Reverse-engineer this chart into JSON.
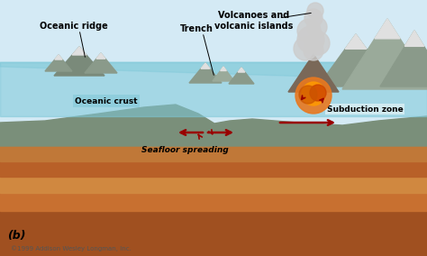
{
  "bg_color": "#d4eaf5",
  "labels": {
    "volcanoes": "Volcanoes and\nvolcanic islands",
    "trench": "Trench",
    "oceanic_ridge": "Oceanic ridge",
    "oceanic_crust": "Oceanic crust",
    "seafloor": "Seafloor spreading",
    "subduction": "Subduction zone",
    "b_label": "(b)",
    "copyright": "©1999 Addison Wesley Longman, Inc."
  },
  "colors": {
    "water": "#7ec8d8",
    "water_deep": "#5aafcb",
    "crust_gray": "#8a9e8a",
    "mantle1": "#c8773a",
    "mantle2": "#b85e2a",
    "mantle3": "#d49060",
    "smoke": "#cccccc",
    "lava": "#e87820",
    "lava_dark": "#cc4400",
    "mountain_gray": "#9aaa9a",
    "arrow_color": "#990000",
    "snow": "#e0e0e0",
    "mountain1": "#7a8a7a",
    "mountain2": "#8a9a8a",
    "mountain3": "#9aaa9a"
  },
  "fig_width": 4.74,
  "fig_height": 2.84,
  "dpi": 100
}
